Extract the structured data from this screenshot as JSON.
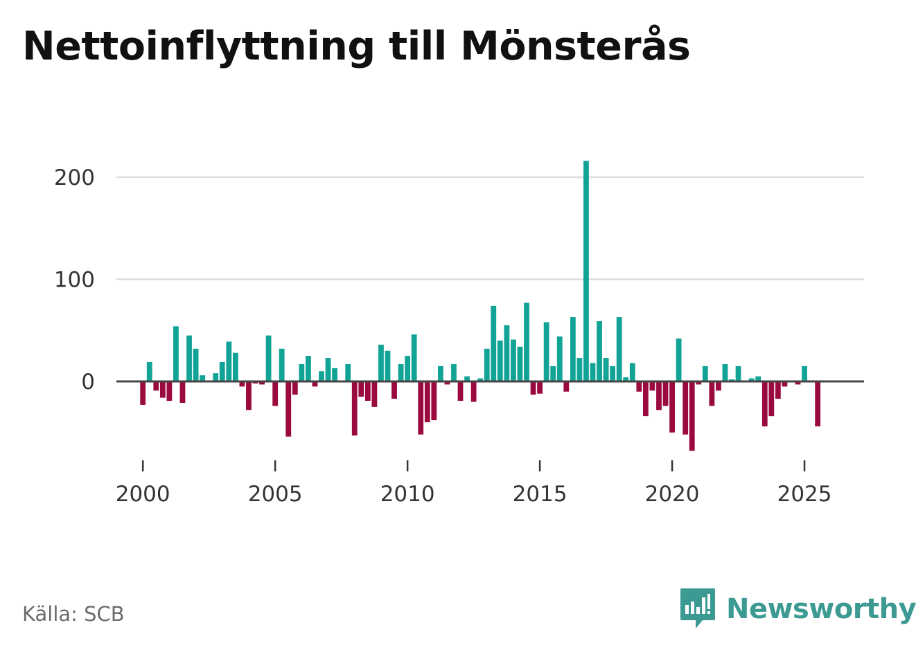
{
  "title": "Nettoinflyttning till Mönsterås",
  "source": "Källa: SCB",
  "brand": "Newsworthy",
  "colors": {
    "positive": "#12a397",
    "negative": "#9b0a3e",
    "grid": "#dddddd",
    "zero_line": "#444444",
    "text": "#333333",
    "brand": "#3c9a93"
  },
  "chart_data": {
    "type": "bar",
    "title": "Nettoinflyttning till Mönsterås",
    "xlabel": "",
    "ylabel": "",
    "x_start": 2000.0,
    "x_step": 0.25,
    "x_ticks": [
      "2000",
      "2005",
      "2010",
      "2015",
      "2020",
      "2025"
    ],
    "y_ticks": [
      "0",
      "100",
      "200"
    ],
    "ylim": [
      -70,
      220
    ],
    "xlim": [
      1999.0,
      2027.25
    ],
    "grid": true,
    "values": [
      -23,
      19,
      -9,
      -16,
      -19,
      54,
      -21,
      45,
      32,
      6,
      0,
      8,
      19,
      39,
      28,
      -5,
      -28,
      -2,
      -3,
      45,
      -24,
      32,
      -54,
      -13,
      17,
      25,
      -5,
      10,
      23,
      13,
      0,
      17,
      -53,
      -15,
      -19,
      -25,
      36,
      30,
      -17,
      17,
      25,
      46,
      -52,
      -40,
      -38,
      15,
      -3,
      17,
      -19,
      5,
      -20,
      3,
      32,
      74,
      40,
      55,
      41,
      34,
      77,
      -13,
      -12,
      58,
      15,
      44,
      -10,
      63,
      23,
      216,
      18,
      59,
      23,
      15,
      63,
      4,
      18,
      -10,
      -34,
      -9,
      -28,
      -24,
      -50,
      42,
      -52,
      -68,
      -3,
      15,
      -24,
      -9,
      17,
      2,
      15,
      0,
      3,
      5,
      -44,
      -34,
      -17,
      -5,
      1,
      -3,
      15,
      0,
      -44
    ]
  }
}
